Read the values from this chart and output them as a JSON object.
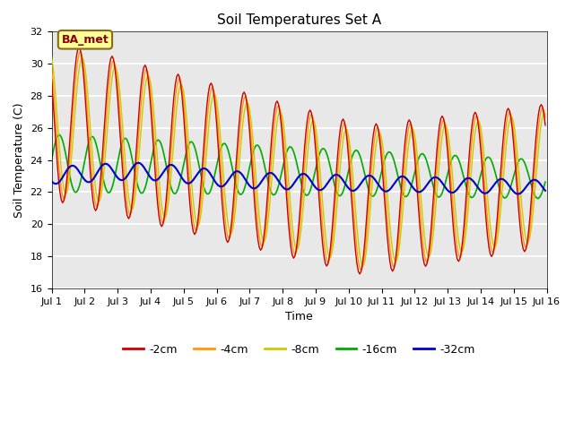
{
  "title": "Soil Temperatures Set A",
  "xlabel": "Time",
  "ylabel": "Soil Temperature (C)",
  "ylim": [
    16,
    32
  ],
  "yticks": [
    16,
    18,
    20,
    22,
    24,
    26,
    28,
    30,
    32
  ],
  "xtick_labels": [
    "Jul 1",
    "Jul 2",
    "Jul 3",
    "Jul 4",
    "Jul 5",
    "Jul 6",
    "Jul 7",
    "Jul 8",
    "Jul 9",
    "Jul 10",
    "Jul 11",
    "Jul 12",
    "Jul 13",
    "Jul 14",
    "Jul 15",
    "Jul 16"
  ],
  "colors": {
    "-2cm": "#cc0000",
    "-4cm": "#ff9900",
    "-8cm": "#cccc00",
    "-16cm": "#00aa00",
    "-32cm": "#0000cc"
  },
  "annotation_text": "BA_met",
  "bg_color": "#e8e8e8",
  "title_fontsize": 11,
  "label_fontsize": 9,
  "tick_fontsize": 8,
  "legend_fontsize": 9
}
